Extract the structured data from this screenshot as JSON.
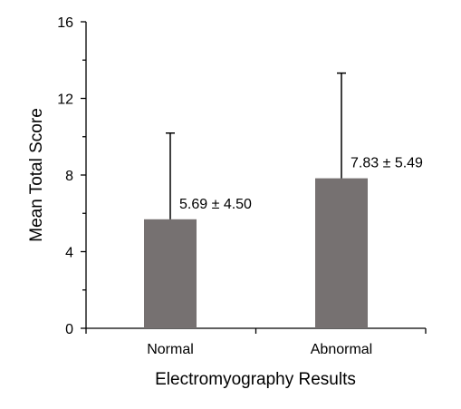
{
  "chart_data": {
    "type": "bar",
    "title": "",
    "xlabel": "Electromyography Results",
    "ylabel": "Mean Total Score",
    "categories": [
      "Normal",
      "Abnormal"
    ],
    "values": [
      5.69,
      7.83
    ],
    "errors": [
      4.5,
      5.49
    ],
    "data_labels": [
      "5.69 ± 4.50",
      "7.83 ± 5.49"
    ],
    "ylim": [
      0,
      16
    ],
    "yticks": [
      0,
      4,
      8,
      12,
      16
    ],
    "ytick_labels": [
      "0",
      "4",
      "8",
      "12",
      "16"
    ],
    "grid": false,
    "legend": "none",
    "colors": {
      "bar": "#767171",
      "axis": "#000000",
      "error_bar": "#000000"
    }
  }
}
